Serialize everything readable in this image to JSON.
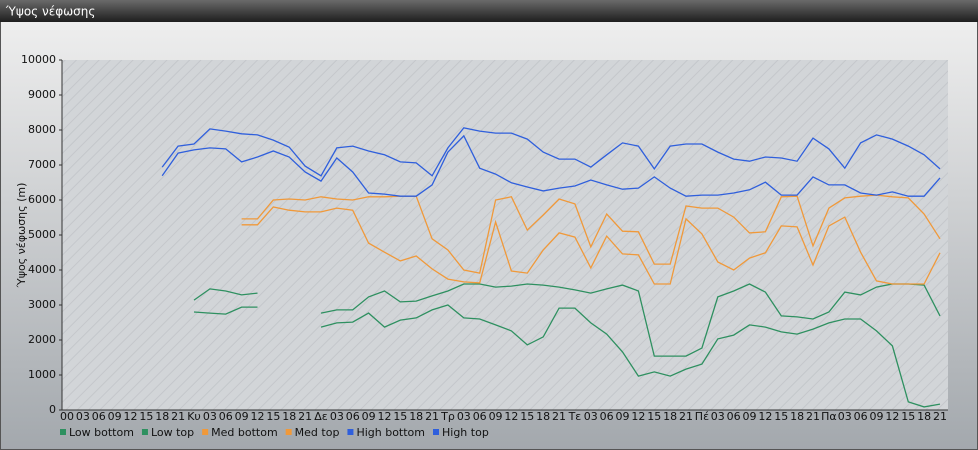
{
  "chart_data": {
    "type": "line",
    "title": "Ύψος νέφωσης",
    "ylabel": "Ύψος νέφωσης (m)",
    "categories": [
      "00",
      "03",
      "06",
      "09",
      "12",
      "15",
      "18",
      "21",
      "Κυ",
      "03",
      "06",
      "09",
      "12",
      "15",
      "18",
      "21",
      "Δε",
      "03",
      "06",
      "09",
      "12",
      "15",
      "18",
      "21",
      "Τρ",
      "03",
      "06",
      "09",
      "12",
      "15",
      "18",
      "21",
      "Τε",
      "03",
      "06",
      "09",
      "12",
      "15",
      "18",
      "21",
      "Πέ",
      "03",
      "06",
      "09",
      "12",
      "15",
      "18",
      "21",
      "Πα",
      "03",
      "06",
      "09",
      "12",
      "15",
      "18",
      "21"
    ],
    "ylim": [
      0,
      10000
    ],
    "yticks": [
      0,
      1000,
      2000,
      3000,
      4000,
      5000,
      6000,
      7000,
      8000,
      9000,
      10000
    ],
    "series": [
      {
        "name": "Low bottom",
        "color": "#2e9060",
        "values": [
          null,
          null,
          null,
          null,
          null,
          null,
          null,
          null,
          2800,
          2770,
          2740,
          2940,
          2940,
          null,
          null,
          null,
          2370,
          2490,
          2510,
          2770,
          2370,
          2570,
          2630,
          2860,
          3000,
          2630,
          2600,
          2430,
          2260,
          1860,
          2090,
          2910,
          2910,
          2490,
          2170,
          1660,
          970,
          1090,
          970,
          1170,
          1310,
          2030,
          2140,
          2430,
          2370,
          2230,
          2170,
          2310,
          2490,
          2600,
          2600,
          2260,
          1830,
          230,
          90,
          170
        ]
      },
      {
        "name": "Low top",
        "color": "#2e9060",
        "values": [
          null,
          null,
          null,
          null,
          null,
          null,
          null,
          null,
          3140,
          3460,
          3400,
          3290,
          3340,
          null,
          null,
          null,
          2770,
          2860,
          2860,
          3230,
          3400,
          3090,
          3110,
          3260,
          3400,
          3600,
          3600,
          3510,
          3540,
          3600,
          3570,
          3510,
          3430,
          3340,
          3460,
          3570,
          3400,
          1540,
          1540,
          1540,
          1770,
          3230,
          3400,
          3600,
          3370,
          2690,
          2660,
          2600,
          2800,
          3370,
          3290,
          3510,
          3600,
          3600,
          3570,
          2690
        ]
      },
      {
        "name": "Med bottom",
        "color": "#f0993a",
        "values": [
          null,
          null,
          null,
          null,
          null,
          null,
          null,
          null,
          null,
          null,
          null,
          5290,
          5290,
          5800,
          5710,
          5660,
          5660,
          5770,
          5710,
          4770,
          4510,
          4260,
          4400,
          4030,
          3740,
          3660,
          3630,
          5370,
          3970,
          3910,
          4570,
          5060,
          4940,
          4060,
          4970,
          4460,
          4430,
          3600,
          3600,
          5460,
          5030,
          4230,
          4000,
          4340,
          4490,
          5260,
          5230,
          4140,
          5260,
          5510,
          4510,
          3690,
          3600,
          3600,
          3600,
          4490
        ]
      },
      {
        "name": "Med top",
        "color": "#f0993a",
        "values": [
          null,
          null,
          null,
          null,
          null,
          null,
          null,
          null,
          null,
          null,
          null,
          5460,
          5460,
          6000,
          6030,
          6000,
          6090,
          6030,
          6000,
          6090,
          6090,
          6110,
          6110,
          4890,
          4570,
          4000,
          3910,
          6000,
          6090,
          5140,
          5570,
          6030,
          5890,
          4660,
          5600,
          5110,
          5090,
          4170,
          4170,
          5830,
          5770,
          5770,
          5510,
          5060,
          5090,
          6090,
          6110,
          4690,
          5770,
          6060,
          6110,
          6140,
          6090,
          6060,
          5600,
          4890
        ]
      },
      {
        "name": "High bottom",
        "color": "#2f5fdc",
        "values": [
          null,
          null,
          null,
          null,
          null,
          null,
          6690,
          7340,
          7430,
          7490,
          7460,
          7090,
          7230,
          7400,
          7230,
          6800,
          6540,
          7200,
          6800,
          6200,
          6170,
          6110,
          6110,
          6430,
          7370,
          7830,
          6910,
          6740,
          6490,
          6370,
          6260,
          6340,
          6400,
          6570,
          6430,
          6310,
          6340,
          6660,
          6340,
          6110,
          6140,
          6140,
          6200,
          6290,
          6510,
          6140,
          6140,
          6660,
          6430,
          6430,
          6200,
          6140,
          6230,
          6110,
          6110,
          6630
        ]
      },
      {
        "name": "High top",
        "color": "#2f5fdc",
        "values": [
          null,
          null,
          null,
          null,
          null,
          null,
          6940,
          7540,
          7600,
          8030,
          7970,
          7890,
          7860,
          7710,
          7510,
          6970,
          6690,
          7490,
          7540,
          7400,
          7290,
          7090,
          7060,
          6690,
          7490,
          8060,
          7970,
          7910,
          7910,
          7740,
          7370,
          7170,
          7170,
          6940,
          7290,
          7630,
          7540,
          6890,
          7540,
          7600,
          7600,
          7370,
          7170,
          7110,
          7230,
          7200,
          7110,
          7770,
          7460,
          6910,
          7630,
          7860,
          7740,
          7540,
          7290,
          6890
        ]
      }
    ]
  }
}
